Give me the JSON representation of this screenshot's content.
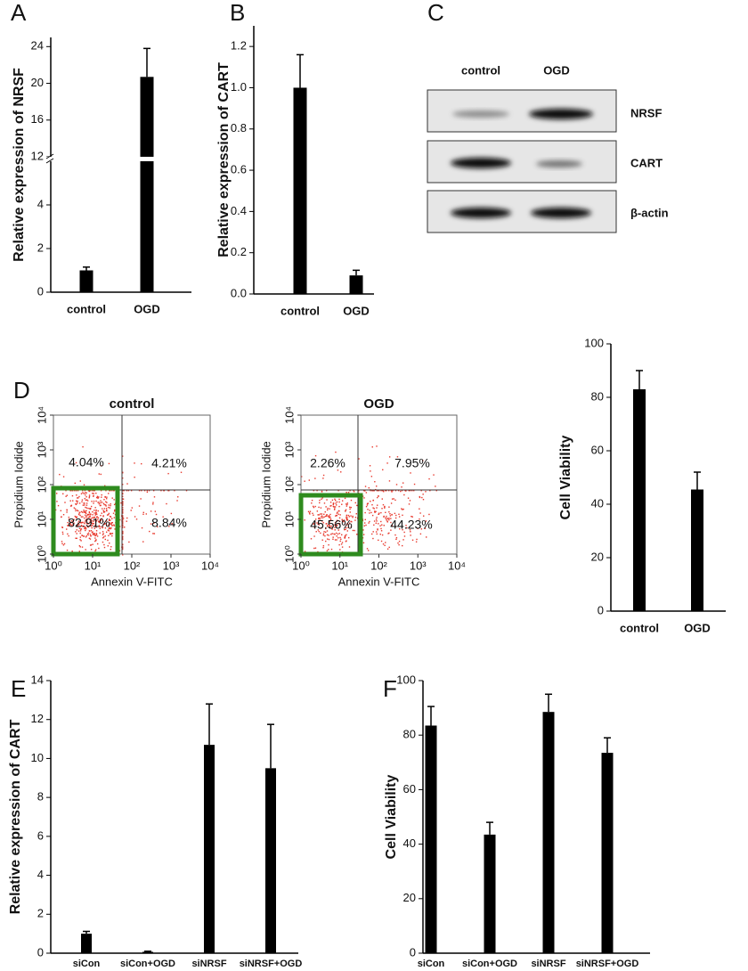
{
  "chart_data": [
    {
      "panel": "A",
      "type": "bar",
      "ylabel": "Relative expression of NRSF",
      "categories": [
        "control",
        "OGD"
      ],
      "values": [
        1.0,
        20.7
      ],
      "errors": [
        0.15,
        3.1
      ],
      "color": "#000000",
      "ylim": [
        0,
        25
      ],
      "ybreak": [
        6,
        12
      ],
      "yticks": [
        0,
        2,
        4,
        12,
        16,
        20,
        24
      ]
    },
    {
      "panel": "B",
      "type": "bar",
      "ylabel": "Relative expression of CART",
      "categories": [
        "control",
        "OGD"
      ],
      "values": [
        1.0,
        0.09
      ],
      "errors": [
        0.16,
        0.025
      ],
      "color": "#000000",
      "ylim": [
        0,
        1.3
      ],
      "yticks": [
        {
          "value": 0,
          "label": "0.0"
        },
        0.2,
        0.4,
        0.6,
        0.8,
        {
          "value": 1,
          "label": "1.0"
        },
        1.2
      ]
    },
    {
      "panel": "D",
      "type": "flow_cytometry",
      "title": "control",
      "xlabel": "Annexin V-FITC",
      "ylabel": "Propidium Iodide",
      "xscale": "log",
      "yscale": "log",
      "xlim": [
        1,
        10000
      ],
      "ylim": [
        1,
        10000
      ],
      "xticks": [
        {
          "value": 1,
          "label": "10⁰"
        },
        {
          "value": 10,
          "label": "10¹"
        },
        {
          "value": 100,
          "label": "10²"
        },
        {
          "value": 1000,
          "label": "10³"
        },
        {
          "value": 10000,
          "label": "10⁴"
        }
      ],
      "yticks": [
        {
          "value": 1,
          "label": "10⁰"
        },
        {
          "value": 10,
          "label": "10¹"
        },
        {
          "value": 100,
          "label": "10²"
        },
        {
          "value": 1000,
          "label": "10³"
        },
        {
          "value": 10000,
          "label": "10⁴"
        }
      ],
      "values": [
        4.04,
        4.21,
        82.91,
        8.84
      ],
      "value_labels": [
        "4.04%",
        "4.21%",
        "82.91%",
        "8.84%"
      ],
      "color": "#e8382c",
      "gate_color": "#2e8b1e"
    },
    {
      "type": "flow_cytometry",
      "title": "OGD",
      "xlabel": "Annexin V-FITC",
      "ylabel": "Propidium Iodide",
      "xscale": "log",
      "yscale": "log",
      "xlim": [
        1,
        10000
      ],
      "ylim": [
        1,
        10000
      ],
      "xticks": [
        {
          "value": 1,
          "label": "10⁰"
        },
        {
          "value": 10,
          "label": "10¹"
        },
        {
          "value": 100,
          "label": "10²"
        },
        {
          "value": 1000,
          "label": "10³"
        },
        {
          "value": 10000,
          "label": "10⁴"
        }
      ],
      "yticks": [
        {
          "value": 1,
          "label": "10⁰"
        },
        {
          "value": 10,
          "label": "10¹"
        },
        {
          "value": 100,
          "label": "10²"
        },
        {
          "value": 1000,
          "label": "10³"
        },
        {
          "value": 10000,
          "label": "10⁴"
        }
      ],
      "values": [
        2.26,
        7.95,
        45.56,
        44.23
      ],
      "value_labels": [
        "2.26%",
        "7.95%",
        "45.56%",
        "44.23%"
      ],
      "color": "#e8382c",
      "gate_color": "#2e8b1e"
    },
    {
      "type": "bar",
      "ylabel": "Cell Viability",
      "categories": [
        "control",
        "OGD"
      ],
      "values": [
        83,
        45.5
      ],
      "errors": [
        7,
        6.5
      ],
      "color": "#000000",
      "ylim": [
        0,
        100
      ],
      "yticks": [
        0,
        20,
        40,
        60,
        80,
        100
      ]
    },
    {
      "panel": "E",
      "type": "bar",
      "ylabel": "Relative expression of CART",
      "categories": [
        "siCon",
        "siCon+OGD",
        "siNRSF",
        "siNRSF+OGD"
      ],
      "values": [
        1.0,
        0.07,
        10.7,
        9.5
      ],
      "errors": [
        0.12,
        0.03,
        2.1,
        2.25
      ],
      "color": "#000000",
      "ylim": [
        0,
        14
      ],
      "yticks": [
        0,
        2,
        4,
        6,
        8,
        10,
        12,
        14
      ]
    },
    {
      "panel": "F",
      "type": "bar",
      "ylabel": "Cell Viability",
      "categories": [
        "siCon",
        "siCon+OGD",
        "siNRSF",
        "siNRSF+OGD"
      ],
      "values": [
        83.5,
        43.5,
        88.5,
        73.5
      ],
      "errors": [
        7,
        4.5,
        6.5,
        5.5
      ],
      "color": "#000000",
      "ylim": [
        0,
        100
      ],
      "yticks": [
        0,
        20,
        40,
        60,
        80,
        100
      ]
    }
  ],
  "blot": {
    "panel": "C",
    "lanes": [
      "control",
      "OGD"
    ],
    "rows": [
      "NRSF",
      "CART",
      "β-actin"
    ]
  }
}
